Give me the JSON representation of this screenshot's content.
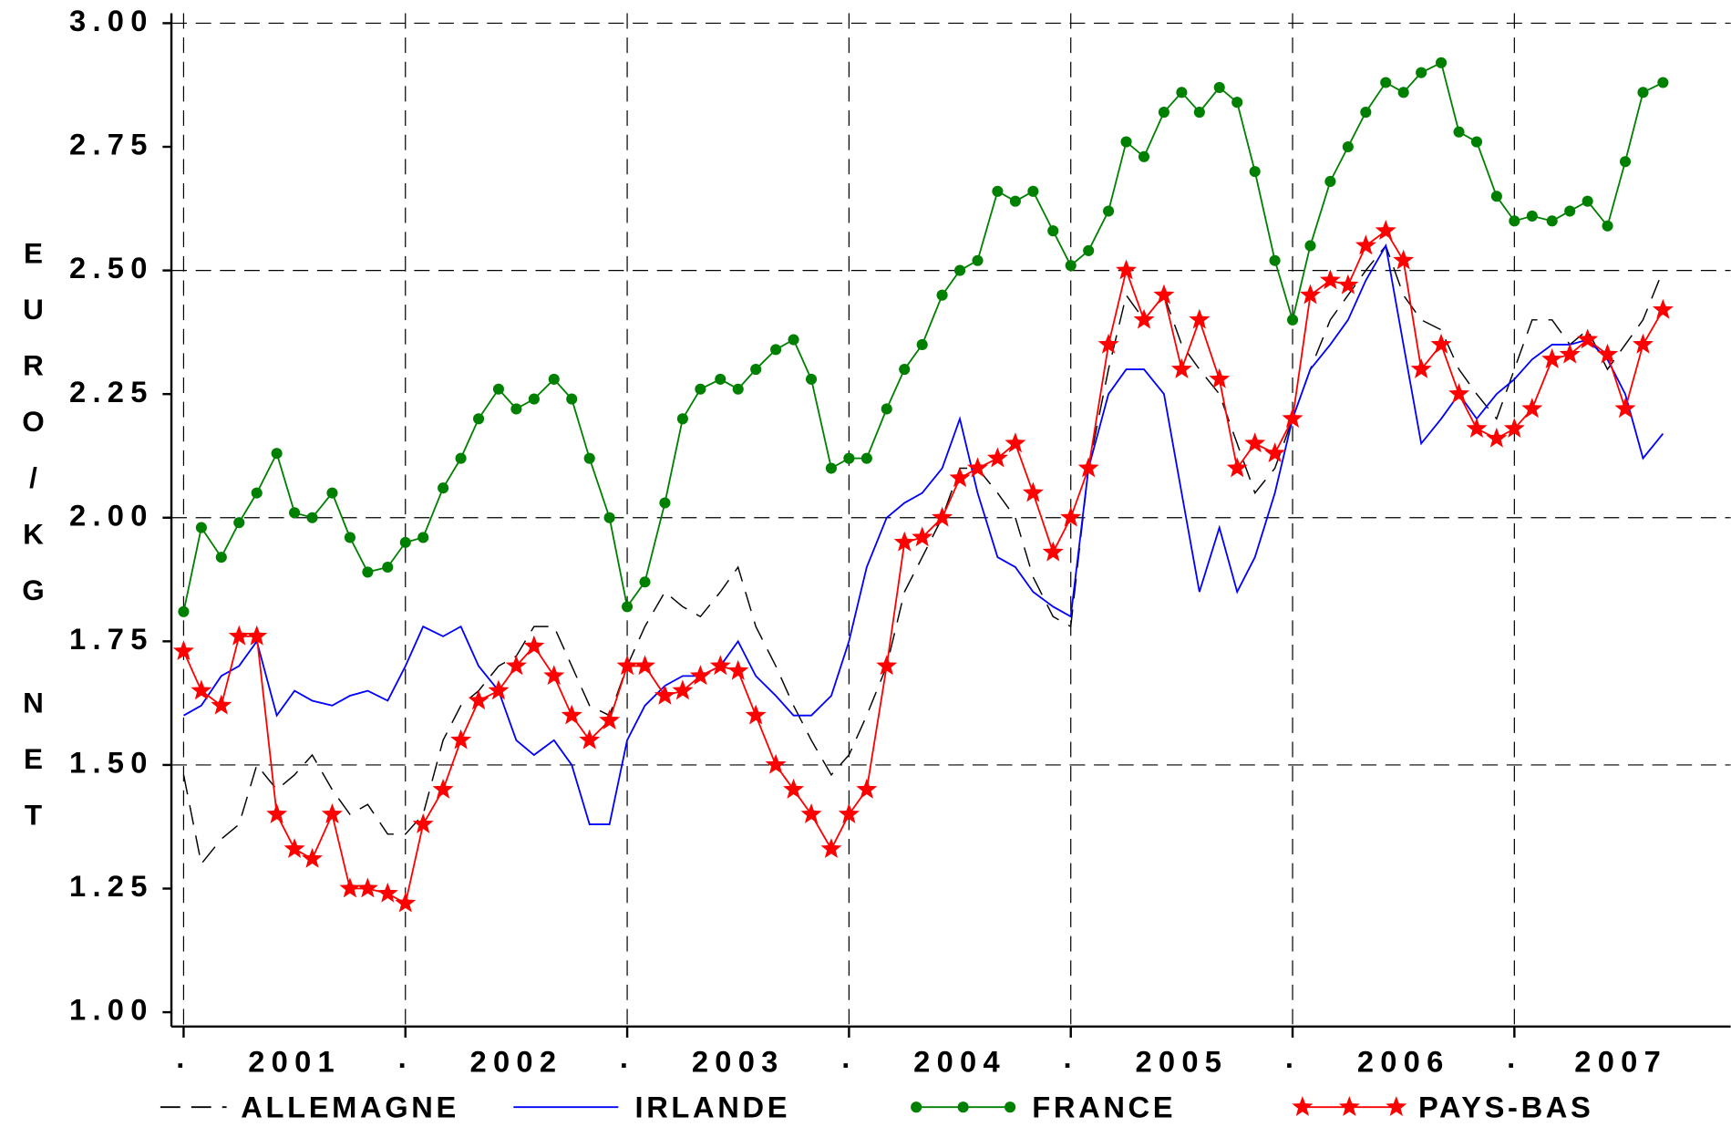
{
  "chart_data": {
    "type": "line",
    "y_label": "EURO/KG NET",
    "x": [
      2001,
      2001.08,
      2001.17,
      2001.25,
      2001.33,
      2001.42,
      2001.5,
      2001.58,
      2001.67,
      2001.75,
      2001.83,
      2001.92,
      2002,
      2002.08,
      2002.17,
      2002.25,
      2002.33,
      2002.42,
      2002.5,
      2002.58,
      2002.67,
      2002.75,
      2002.83,
      2002.92,
      2003,
      2003.08,
      2003.17,
      2003.25,
      2003.33,
      2003.42,
      2003.5,
      2003.58,
      2003.67,
      2003.75,
      2003.83,
      2003.92,
      2004,
      2004.08,
      2004.17,
      2004.25,
      2004.33,
      2004.42,
      2004.5,
      2004.58,
      2004.67,
      2004.75,
      2004.83,
      2004.92,
      2005,
      2005.08,
      2005.17,
      2005.25,
      2005.33,
      2005.42,
      2005.5,
      2005.58,
      2005.67,
      2005.75,
      2005.83,
      2005.92,
      2006,
      2006.08,
      2006.17,
      2006.25,
      2006.33,
      2006.42,
      2006.5,
      2006.58,
      2006.67,
      2006.75,
      2006.83,
      2006.92,
      2007,
      2007.08,
      2007.17,
      2007.25,
      2007.33,
      2007.42,
      2007.5,
      2007.58,
      2007.67
    ],
    "series": [
      {
        "name": "ALLEMAGNE",
        "color": "#000000",
        "line_style": "dashed",
        "marker": "none",
        "values": [
          1.48,
          1.3,
          1.35,
          1.38,
          1.5,
          1.45,
          1.48,
          1.52,
          1.45,
          1.4,
          1.42,
          1.36,
          1.36,
          1.4,
          1.55,
          1.62,
          1.65,
          1.7,
          1.72,
          1.78,
          1.78,
          1.7,
          1.62,
          1.6,
          1.7,
          1.78,
          1.85,
          1.82,
          1.8,
          1.85,
          1.9,
          1.78,
          1.7,
          1.62,
          1.55,
          1.48,
          1.52,
          1.6,
          1.7,
          1.85,
          1.92,
          2.0,
          2.1,
          2.1,
          2.05,
          2.0,
          1.88,
          1.8,
          1.78,
          2.1,
          2.3,
          2.45,
          2.4,
          2.45,
          2.35,
          2.3,
          2.25,
          2.15,
          2.05,
          2.1,
          2.2,
          2.3,
          2.4,
          2.45,
          2.5,
          2.55,
          2.45,
          2.4,
          2.38,
          2.3,
          2.25,
          2.2,
          2.3,
          2.4,
          2.4,
          2.35,
          2.38,
          2.3,
          2.35,
          2.4,
          2.5
        ]
      },
      {
        "name": "IRLANDE",
        "color": "#0000ff",
        "line_style": "solid",
        "marker": "none",
        "values": [
          1.6,
          1.62,
          1.68,
          1.7,
          1.75,
          1.6,
          1.65,
          1.63,
          1.62,
          1.64,
          1.65,
          1.63,
          1.7,
          1.78,
          1.76,
          1.78,
          1.7,
          1.65,
          1.55,
          1.52,
          1.55,
          1.5,
          1.38,
          1.38,
          1.55,
          1.62,
          1.66,
          1.68,
          1.68,
          1.7,
          1.75,
          1.68,
          1.64,
          1.6,
          1.6,
          1.64,
          1.75,
          1.9,
          2.0,
          2.03,
          2.05,
          2.1,
          2.2,
          2.05,
          1.92,
          1.9,
          1.85,
          1.82,
          1.8,
          2.1,
          2.25,
          2.3,
          2.3,
          2.25,
          2.05,
          1.85,
          1.98,
          1.85,
          1.92,
          2.05,
          2.2,
          2.3,
          2.35,
          2.4,
          2.48,
          2.55,
          2.35,
          2.15,
          2.2,
          2.25,
          2.2,
          2.25,
          2.28,
          2.32,
          2.35,
          2.35,
          2.36,
          2.32,
          2.25,
          2.12,
          2.17
        ]
      },
      {
        "name": "FRANCE",
        "color": "#008000",
        "line_style": "solid",
        "marker": "circle",
        "values": [
          1.81,
          1.98,
          1.92,
          1.99,
          2.05,
          2.13,
          2.01,
          2.0,
          2.05,
          1.96,
          1.89,
          1.9,
          1.95,
          1.96,
          2.06,
          2.12,
          2.2,
          2.26,
          2.22,
          2.24,
          2.28,
          2.24,
          2.12,
          2.0,
          1.82,
          1.87,
          2.03,
          2.2,
          2.26,
          2.28,
          2.26,
          2.3,
          2.34,
          2.36,
          2.28,
          2.1,
          2.12,
          2.12,
          2.22,
          2.3,
          2.35,
          2.45,
          2.5,
          2.52,
          2.66,
          2.64,
          2.66,
          2.58,
          2.51,
          2.54,
          2.62,
          2.76,
          2.73,
          2.82,
          2.86,
          2.82,
          2.87,
          2.84,
          2.7,
          2.52,
          2.4,
          2.55,
          2.68,
          2.75,
          2.82,
          2.88,
          2.86,
          2.9,
          2.92,
          2.78,
          2.76,
          2.65,
          2.6,
          2.61,
          2.6,
          2.62,
          2.64,
          2.59,
          2.72,
          2.86,
          2.88
        ]
      },
      {
        "name": "PAYS-BAS",
        "color": "#ff0000",
        "line_style": "solid",
        "marker": "star",
        "values": [
          1.73,
          1.65,
          1.62,
          1.76,
          1.76,
          1.4,
          1.33,
          1.31,
          1.4,
          1.25,
          1.25,
          1.24,
          1.22,
          1.38,
          1.45,
          1.55,
          1.63,
          1.65,
          1.7,
          1.74,
          1.68,
          1.6,
          1.55,
          1.59,
          1.7,
          1.7,
          1.64,
          1.65,
          1.68,
          1.7,
          1.69,
          1.6,
          1.5,
          1.45,
          1.4,
          1.33,
          1.4,
          1.45,
          1.7,
          1.95,
          1.96,
          2.0,
          2.08,
          2.1,
          2.12,
          2.15,
          2.05,
          1.93,
          2.0,
          2.1,
          2.35,
          2.5,
          2.4,
          2.45,
          2.3,
          2.4,
          2.28,
          2.1,
          2.15,
          2.13,
          2.2,
          2.45,
          2.48,
          2.47,
          2.55,
          2.58,
          2.52,
          2.3,
          2.35,
          2.25,
          2.18,
          2.16,
          2.18,
          2.22,
          2.32,
          2.33,
          2.36,
          2.33,
          2.22,
          2.35,
          2.42
        ]
      }
    ],
    "xlim": [
      2000.945,
      2007.975
    ],
    "xticks": [
      {
        "value": 2001,
        "label": "."
      },
      {
        "value": 2002,
        "label": "."
      },
      {
        "value": 2003,
        "label": "."
      },
      {
        "value": 2004,
        "label": "."
      },
      {
        "value": 2005,
        "label": "."
      },
      {
        "value": 2006,
        "label": "."
      },
      {
        "value": 2007,
        "label": "."
      }
    ],
    "x_period_labels": [
      {
        "value": 2001.5,
        "label": "2001"
      },
      {
        "value": 2002.5,
        "label": "2002"
      },
      {
        "value": 2003.5,
        "label": "2003"
      },
      {
        "value": 2004.5,
        "label": "2004"
      },
      {
        "value": 2005.5,
        "label": "2005"
      },
      {
        "value": 2006.5,
        "label": "2006"
      },
      {
        "value": 2007.48,
        "label": "2007"
      }
    ],
    "ylim": [
      1,
      3
    ],
    "yticks": [
      {
        "value": 1,
        "label": "1.00"
      },
      {
        "value": 1.25,
        "label": "1.25"
      },
      {
        "value": 1.5,
        "label": "1.50"
      },
      {
        "value": 1.75,
        "label": "1.75"
      },
      {
        "value": 2,
        "label": "2.00"
      },
      {
        "value": 2.25,
        "label": "2.25"
      },
      {
        "value": 2.5,
        "label": "2.50"
      },
      {
        "value": 2.75,
        "label": "2.75"
      },
      {
        "value": 3,
        "label": "3.00"
      }
    ],
    "ygrid": [
      1.5,
      2,
      2.5,
      3
    ],
    "xgrid": true,
    "legend": "bottom"
  }
}
